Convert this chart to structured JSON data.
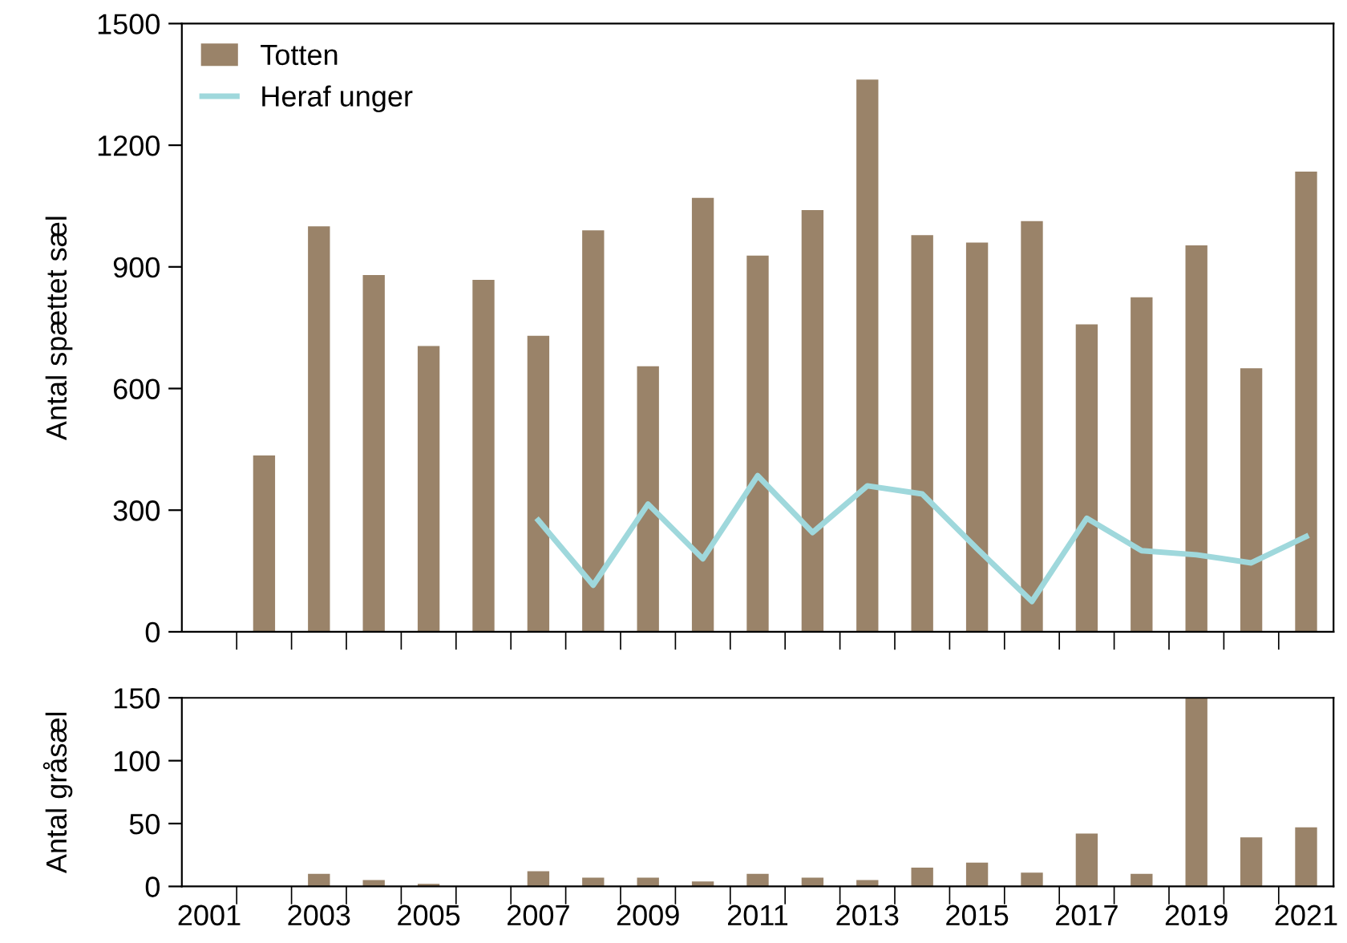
{
  "chart_data": [
    {
      "type": "bar",
      "ylabel": "Antal spættet sæl",
      "categories": [
        "2001",
        null,
        "2003",
        null,
        "2005",
        null,
        "2007",
        null,
        "2009",
        null,
        "2011",
        null,
        "2013",
        null,
        "2015",
        null,
        "2017",
        null,
        "2019",
        null,
        "2021"
      ],
      "series": [
        {
          "name": "Totten",
          "color": "#9a8369",
          "values": [
            null,
            435,
            1000,
            880,
            705,
            868,
            730,
            990,
            655,
            1070,
            928,
            1040,
            1362,
            978,
            960,
            1013,
            758,
            825,
            953,
            650,
            1135
          ]
        },
        {
          "name": "Heraf unger",
          "type": "line",
          "color": "#9fd8dc",
          "values": [
            null,
            null,
            null,
            null,
            null,
            null,
            275,
            115,
            315,
            180,
            385,
            245,
            360,
            340,
            205,
            75,
            280,
            200,
            190,
            170,
            235
          ]
        }
      ],
      "ylim": [
        0,
        1500
      ],
      "yticks": [
        0,
        300,
        600,
        900,
        1200,
        1500
      ],
      "legend": "top left",
      "tick_labels": "y",
      "grid": false
    },
    {
      "type": "bar",
      "ylabel": "Antal gråsæl",
      "categories": [
        "2001",
        null,
        "2003",
        null,
        "2005",
        null,
        "2007",
        null,
        "2009",
        null,
        "2011",
        null,
        "2013",
        null,
        "2015",
        null,
        "2017",
        null,
        "2019",
        null,
        "2021"
      ],
      "series": [
        {
          "color": "#9a8369",
          "values": [
            null,
            null,
            10,
            5,
            2,
            null,
            12,
            7,
            7,
            4,
            10,
            7,
            5,
            15,
            19,
            11,
            42,
            10,
            150,
            39,
            47
          ]
        }
      ],
      "ylim": [
        0,
        150
      ],
      "yticks": [
        0,
        50,
        100,
        150
      ],
      "grid": false
    }
  ]
}
